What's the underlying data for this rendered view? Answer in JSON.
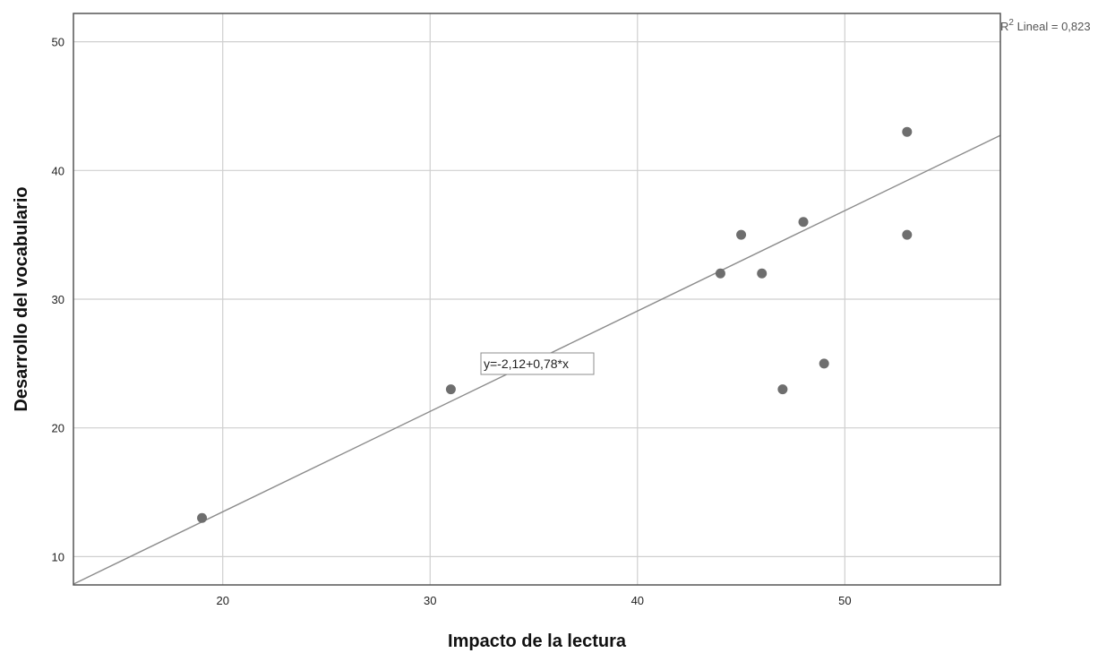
{
  "chart_data": {
    "type": "scatter",
    "title": "",
    "xlabel": "Impacto de la lectura",
    "ylabel": "Desarrollo del vocabulario",
    "xlim": [
      12.8,
      57.5
    ],
    "ylim": [
      7.8,
      52.2
    ],
    "xticks": [
      20,
      30,
      40,
      50
    ],
    "yticks": [
      10,
      20,
      30,
      40,
      50
    ],
    "xtick_labels": [
      "20",
      "30",
      "40",
      "50"
    ],
    "ytick_labels": [
      "10",
      "20",
      "30",
      "40",
      "50"
    ],
    "grid": true,
    "points": [
      {
        "x": 19,
        "y": 13
      },
      {
        "x": 31,
        "y": 23
      },
      {
        "x": 44,
        "y": 32
      },
      {
        "x": 45,
        "y": 35
      },
      {
        "x": 46,
        "y": 32
      },
      {
        "x": 47,
        "y": 23
      },
      {
        "x": 48,
        "y": 36
      },
      {
        "x": 49,
        "y": 25
      },
      {
        "x": 53,
        "y": 43
      },
      {
        "x": 53,
        "y": 35
      }
    ],
    "fit_line": {
      "intercept": -2.12,
      "slope": 0.78
    },
    "equation_label": "y=-2,12+0,78*x",
    "r2_prefix": "R",
    "r2_superscript": "2",
    "r2_text": " Lineal = 0,823",
    "colors": {
      "points": "#6e6e6e",
      "line": "#8c8c8c",
      "grid": "#cfcfcf",
      "frame": "#555555"
    }
  }
}
